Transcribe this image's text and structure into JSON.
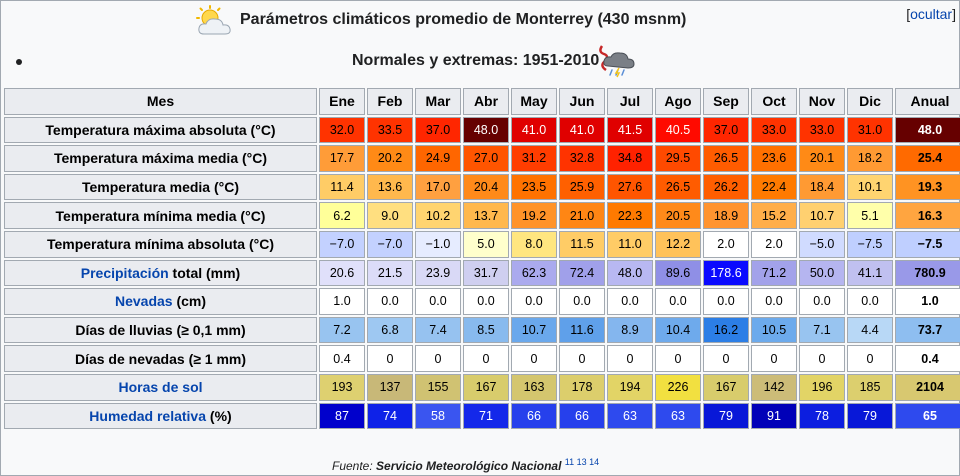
{
  "header": {
    "title": "Parámetros climáticos promedio de Monterrey (430 msnm)",
    "subtitle": "Normales y extremas: 1951-2010",
    "toggle_open": "[",
    "toggle_label": "ocultar",
    "toggle_close": "]",
    "sun_icon": "partly-cloudy-icon",
    "storm_icon": "storm-cloud-icon"
  },
  "table": {
    "corner": "Mes",
    "months": [
      "Ene",
      "Feb",
      "Mar",
      "Abr",
      "May",
      "Jun",
      "Jul",
      "Ago",
      "Sep",
      "Oct",
      "Nov",
      "Dic"
    ],
    "annual_header": "Anual",
    "rows": [
      {
        "label": "Temperatura máxima absoluta (°C)",
        "values": [
          "32.0",
          "33.5",
          "37.0",
          "48.0",
          "41.0",
          "41.0",
          "41.5",
          "40.5",
          "37.0",
          "33.0",
          "33.0",
          "31.0"
        ],
        "annual": "48.0",
        "colors": [
          "#ff3300",
          "#ff3300",
          "#ff2600",
          "#660000",
          "#e00000",
          "#e00000",
          "#e00000",
          "#ff0a00",
          "#ff2600",
          "#ff3300",
          "#ff3300",
          "#ff3300"
        ],
        "annual_color": "#660000",
        "text_colors": [
          "#000",
          "#000",
          "#000",
          "#fff",
          "#fff",
          "#fff",
          "#fff",
          "#fff",
          "#000",
          "#000",
          "#000",
          "#000"
        ],
        "annual_text": "#fff"
      },
      {
        "label": "Temperatura máxima media (°C)",
        "values": [
          "17.7",
          "20.2",
          "24.9",
          "27.0",
          "31.2",
          "32.8",
          "34.8",
          "29.5",
          "26.5",
          "23.6",
          "20.1",
          "18.2"
        ],
        "annual": "25.4",
        "colors": [
          "#ff9c38",
          "#ff8a16",
          "#ff6600",
          "#ff5500",
          "#ff3d00",
          "#ff3300",
          "#ff2200",
          "#ff4a00",
          "#ff5c00",
          "#ff7000",
          "#ff8a16",
          "#ff9a33"
        ],
        "annual_color": "#ff6a00",
        "text_colors": [
          "#000",
          "#000",
          "#000",
          "#000",
          "#000",
          "#000",
          "#000",
          "#000",
          "#000",
          "#000",
          "#000",
          "#000"
        ],
        "annual_text": "#000"
      },
      {
        "label": "Temperatura media (°C)",
        "values": [
          "11.4",
          "13.6",
          "17.0",
          "20.4",
          "23.5",
          "25.9",
          "27.6",
          "26.5",
          "26.2",
          "22.4",
          "18.4",
          "10.1"
        ],
        "annual": "19.3",
        "colors": [
          "#ffcc66",
          "#ffb84d",
          "#ffa040",
          "#ff8a1a",
          "#ff7200",
          "#ff6000",
          "#ff5500",
          "#ff5c00",
          "#ff5e00",
          "#ff7a00",
          "#ff9a33",
          "#ffd470"
        ],
        "annual_color": "#ff9322",
        "text_colors": [
          "#000",
          "#000",
          "#000",
          "#000",
          "#000",
          "#000",
          "#000",
          "#000",
          "#000",
          "#000",
          "#000",
          "#000"
        ],
        "annual_text": "#000"
      },
      {
        "label": "Temperatura mínima media (°C)",
        "values": [
          "6.2",
          "9.0",
          "10.2",
          "13.7",
          "19.2",
          "21.0",
          "22.3",
          "20.5",
          "18.9",
          "15.2",
          "10.7",
          "5.1"
        ],
        "annual": "16.3",
        "colors": [
          "#ffff99",
          "#ffdf80",
          "#ffd470",
          "#ffb84d",
          "#ff9328",
          "#ff8614",
          "#ff7a00",
          "#ff8a1a",
          "#ff9430",
          "#ffae4a",
          "#ffd070",
          "#ffffaa"
        ],
        "annual_color": "#ffa540",
        "text_colors": [
          "#000",
          "#000",
          "#000",
          "#000",
          "#000",
          "#000",
          "#000",
          "#000",
          "#000",
          "#000",
          "#000",
          "#000"
        ],
        "annual_text": "#000"
      },
      {
        "label": "Temperatura mínima absoluta (°C)",
        "values": [
          "−7.0",
          "−7.0",
          "−1.0",
          "5.0",
          "8.0",
          "11.5",
          "11.0",
          "12.2",
          "2.0",
          "2.0",
          "−5.0",
          "−7.5"
        ],
        "annual": "−7.5",
        "colors": [
          "#c3d1ff",
          "#c3d1ff",
          "#e6ecff",
          "#ffffcc",
          "#ffe680",
          "#ffcc66",
          "#ffcc66",
          "#ffc25a",
          "#ffffff",
          "#ffffff",
          "#d0dbff",
          "#bfcfff"
        ],
        "annual_color": "#bfcfff",
        "text_colors": [
          "#000",
          "#000",
          "#000",
          "#000",
          "#000",
          "#000",
          "#000",
          "#000",
          "#000",
          "#000",
          "#000",
          "#000"
        ],
        "annual_text": "#000"
      },
      {
        "label_link": "Precipitación",
        "label_rest": " total (mm)",
        "values": [
          "20.6",
          "21.5",
          "23.9",
          "31.7",
          "62.3",
          "72.4",
          "48.0",
          "89.6",
          "178.6",
          "71.2",
          "50.0",
          "41.1"
        ],
        "annual": "780.9",
        "colors": [
          "#e0e0fa",
          "#dcdcf8",
          "#d9d9f6",
          "#cfcff0",
          "#aaaaee",
          "#a0a0ea",
          "#b8b8f2",
          "#8f8fe6",
          "#0a0aff",
          "#a2a2ea",
          "#b5b5f0",
          "#c0c0f0"
        ],
        "annual_color": "#9999e8",
        "text_colors": [
          "#000",
          "#000",
          "#000",
          "#000",
          "#000",
          "#000",
          "#000",
          "#000",
          "#fff",
          "#000",
          "#000",
          "#000"
        ],
        "annual_text": "#000"
      },
      {
        "label_link": "Nevadas",
        "label_rest": " (cm)",
        "values": [
          "1.0",
          "0.0",
          "0.0",
          "0.0",
          "0.0",
          "0.0",
          "0.0",
          "0.0",
          "0.0",
          "0.0",
          "0.0",
          "0.0"
        ],
        "annual": "1.0",
        "colors": [
          "#ffffff",
          "#ffffff",
          "#ffffff",
          "#ffffff",
          "#ffffff",
          "#ffffff",
          "#ffffff",
          "#ffffff",
          "#ffffff",
          "#ffffff",
          "#ffffff",
          "#ffffff"
        ],
        "annual_color": "#ffffff",
        "text_colors": [
          "#000",
          "#000",
          "#000",
          "#000",
          "#000",
          "#000",
          "#000",
          "#000",
          "#000",
          "#000",
          "#000",
          "#000"
        ],
        "annual_text": "#000"
      },
      {
        "label": "Días de lluvias (≥ 0,1 mm)",
        "values": [
          "7.2",
          "6.8",
          "7.4",
          "8.5",
          "10.7",
          "11.6",
          "8.9",
          "10.4",
          "16.2",
          "10.5",
          "7.1",
          "4.4"
        ],
        "annual": "73.7",
        "colors": [
          "#98c4f0",
          "#9ec8f2",
          "#96c2f0",
          "#88baee",
          "#6aa8ec",
          "#5fa0ea",
          "#84b6ee",
          "#6eaaec",
          "#2c7ee6",
          "#6caaec",
          "#98c4f0",
          "#b8d8f6"
        ],
        "annual_color": "#8ebef0",
        "text_colors": [
          "#000",
          "#000",
          "#000",
          "#000",
          "#000",
          "#000",
          "#000",
          "#000",
          "#000",
          "#000",
          "#000",
          "#000"
        ],
        "annual_text": "#000"
      },
      {
        "label": "Días de nevadas (≥ 1 mm)",
        "values": [
          "0.4",
          "0",
          "0",
          "0",
          "0",
          "0",
          "0",
          "0",
          "0",
          "0",
          "0",
          "0"
        ],
        "annual": "0.4",
        "colors": [
          "#ffffff",
          "#ffffff",
          "#ffffff",
          "#ffffff",
          "#ffffff",
          "#ffffff",
          "#ffffff",
          "#ffffff",
          "#ffffff",
          "#ffffff",
          "#ffffff",
          "#ffffff"
        ],
        "annual_color": "#ffffff",
        "text_colors": [
          "#000",
          "#000",
          "#000",
          "#000",
          "#000",
          "#000",
          "#000",
          "#000",
          "#000",
          "#000",
          "#000",
          "#000"
        ],
        "annual_text": "#000"
      },
      {
        "label_link": "Horas de sol",
        "label_rest": "",
        "values": [
          "193",
          "137",
          "155",
          "167",
          "163",
          "178",
          "194",
          "226",
          "167",
          "142",
          "196",
          "185"
        ],
        "annual": "2104",
        "colors": [
          "#ded070",
          "#c8b878",
          "#d0c272",
          "#d8cc6c",
          "#d4c66e",
          "#dcce6c",
          "#e2d466",
          "#f2e040",
          "#d8cc6c",
          "#ccbc78",
          "#e2d466",
          "#dccf6e"
        ],
        "annual_color": "#d8c870",
        "text_colors": [
          "#000",
          "#000",
          "#000",
          "#000",
          "#000",
          "#000",
          "#000",
          "#000",
          "#000",
          "#000",
          "#000",
          "#000"
        ],
        "annual_text": "#000"
      },
      {
        "label_link": "Humedad relativa",
        "label_rest": " (%)",
        "values": [
          "87",
          "74",
          "58",
          "71",
          "66",
          "66",
          "63",
          "63",
          "79",
          "91",
          "78",
          "79"
        ],
        "annual": "65",
        "colors": [
          "#0000cc",
          "#0e22e8",
          "#3a55f0",
          "#1428ea",
          "#2640ec",
          "#2640ec",
          "#2e4aee",
          "#2e4aee",
          "#0818d8",
          "#0000b8",
          "#0c1ee0",
          "#0818d8"
        ],
        "annual_color": "#2e4aee",
        "text_colors": [
          "#fff",
          "#fff",
          "#fff",
          "#fff",
          "#fff",
          "#fff",
          "#fff",
          "#fff",
          "#fff",
          "#fff",
          "#fff",
          "#fff"
        ],
        "annual_text": "#fff"
      }
    ]
  },
  "footer": {
    "prefix": "Fuente: ",
    "source": "Servicio Meteorológico Nacional",
    "refs": "11 13 14"
  }
}
